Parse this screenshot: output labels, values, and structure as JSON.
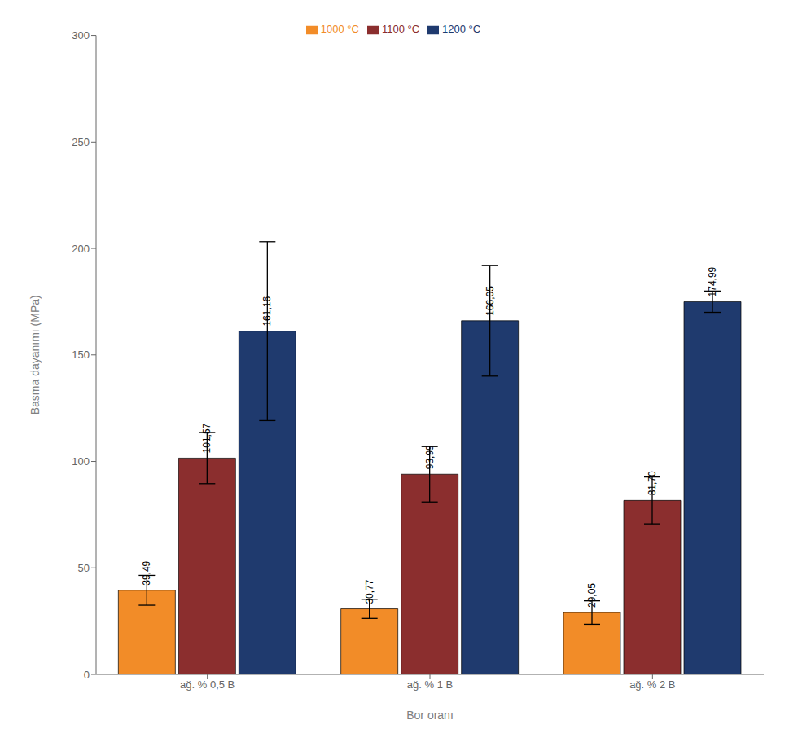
{
  "chart_data": {
    "type": "bar",
    "categories": [
      "ağ. % 0,5 B",
      "ağ. % 1 B",
      "ağ. % 2 B"
    ],
    "series": [
      {
        "name": "1000 °C",
        "color": "#F28C28",
        "values": [
          39.49,
          30.77,
          29.05
        ],
        "value_labels": [
          "39,49",
          "30,77",
          "29,05"
        ],
        "errors": [
          7.0,
          4.5,
          5.5
        ]
      },
      {
        "name": "1100 °C",
        "color": "#8B2E2E",
        "values": [
          101.57,
          93.99,
          81.7
        ],
        "value_labels": [
          "101,57",
          "93,99",
          "81,70"
        ],
        "errors": [
          12.0,
          13.0,
          11.0
        ]
      },
      {
        "name": "1200 °C",
        "color": "#1F3A6E",
        "values": [
          161.16,
          166.05,
          174.99
        ],
        "value_labels": [
          "161,16",
          "166,05",
          "174,99"
        ],
        "errors": [
          42.0,
          26.0,
          5.0
        ]
      }
    ],
    "xlabel": "Bor oranı",
    "ylabel": "Basma dayanımı (MPa)",
    "ylim": [
      0,
      300
    ],
    "yticks": [
      0,
      50,
      100,
      150,
      200,
      250,
      300
    ],
    "grid": false,
    "legend": "upper center",
    "data_labels": true
  }
}
